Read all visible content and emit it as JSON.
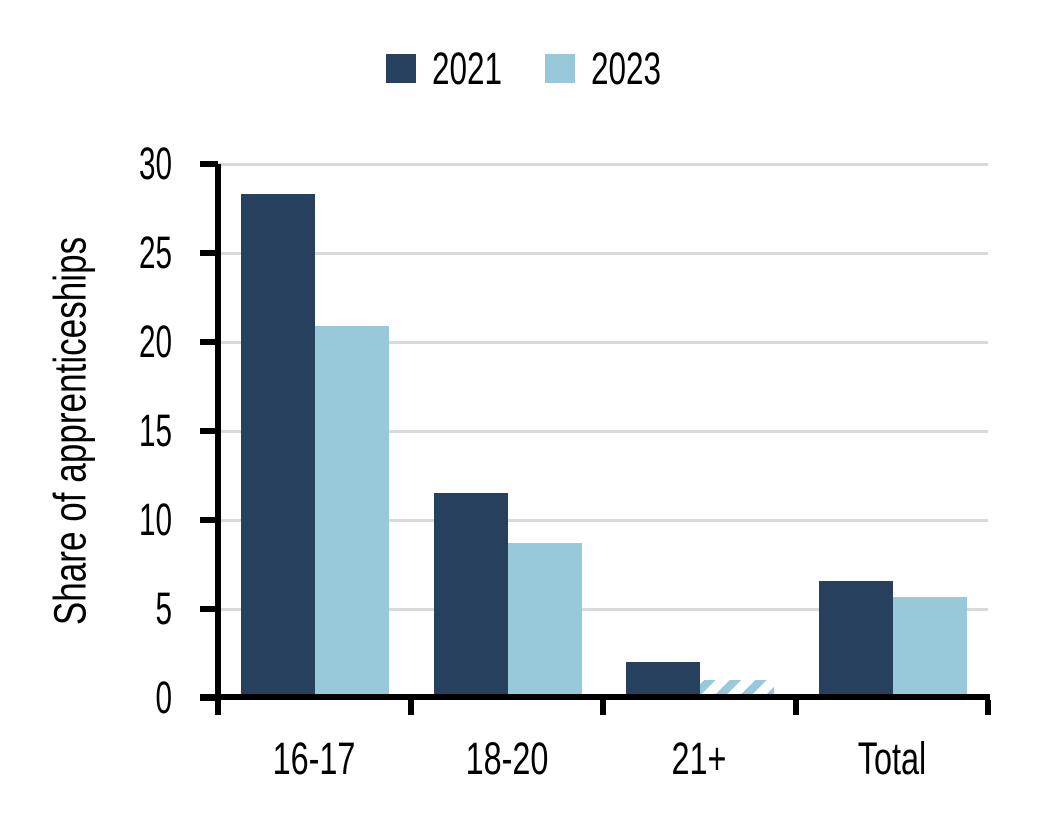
{
  "figure": {
    "background": "#ffffff",
    "text_color": "#000000",
    "gridline_color": "#d9d9d9",
    "axis_color": "#000000"
  },
  "chart_data": {
    "type": "bar",
    "title": "",
    "xlabel": "",
    "ylabel": "Share of apprenticeships",
    "categories": [
      "16-17",
      "18-20",
      "21+",
      "Total"
    ],
    "series": [
      {
        "name": "2021",
        "color": "#27405E",
        "values": [
          28.3,
          11.5,
          2.0,
          6.6
        ],
        "pattern": [
          "solid",
          "solid",
          "solid",
          "solid"
        ]
      },
      {
        "name": "2023",
        "color": "#98C9DB",
        "values": [
          20.9,
          8.7,
          1.0,
          5.7
        ],
        "pattern": [
          "solid",
          "solid",
          "hatched",
          "solid"
        ]
      }
    ],
    "ylim": [
      0,
      30
    ],
    "yticks": [
      0,
      5,
      10,
      15,
      20,
      25,
      30
    ],
    "grid": true,
    "legend_position": "top-center"
  }
}
